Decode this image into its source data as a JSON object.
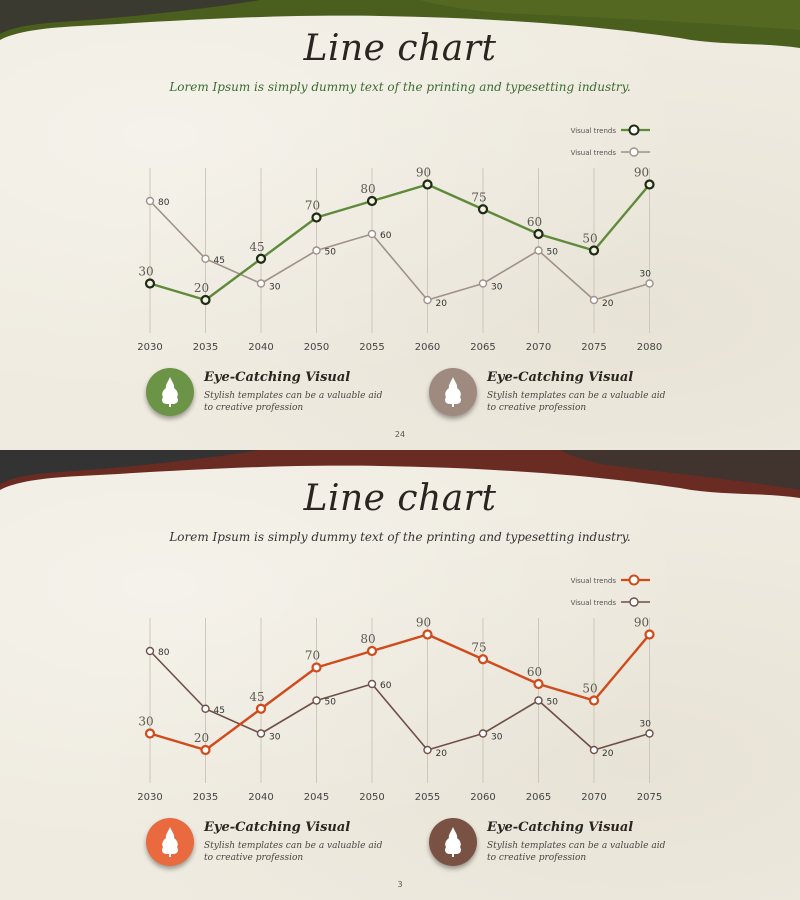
{
  "slides": [
    {
      "title": "Line chart",
      "subtitle": "Lorem Ipsum is simply dummy text of the printing and typesetting industry.",
      "page_number": "24",
      "colors": {
        "primary": "#5e8a3a",
        "secondary": "#a0928a",
        "band": "#4a5e1e",
        "band_dark": "#3a3a30",
        "subtitle": "#3c6b2f",
        "badge1": "#6b9446",
        "badge2": "#9e8a7e"
      },
      "features": [
        {
          "title": "Eye-Catching Visual",
          "desc": "Stylish templates can be a valuable aid to creative profession",
          "icon": "tree-icon"
        },
        {
          "title": "Eye-Catching Visual",
          "desc": "Stylish templates can be a valuable aid to creative profession",
          "icon": "tree-icon"
        }
      ]
    },
    {
      "title": "Line chart",
      "subtitle": "Lorem Ipsum is simply dummy text of the printing and typesetting industry.",
      "page_number": "3",
      "colors": {
        "primary": "#d04a1a",
        "secondary": "#6e5048",
        "band": "#6a2c22",
        "band_dark": "#333",
        "subtitle": "#333333",
        "badge1": "#e86a3e",
        "badge2": "#7a5244"
      },
      "features": [
        {
          "title": "Eye-Catching Visual",
          "desc": "Stylish templates can be a valuable aid to creative profession",
          "icon": "tree-icon"
        },
        {
          "title": "Eye-Catching Visual",
          "desc": "Stylish templates can be a valuable aid to creative profession",
          "icon": "tree-icon"
        }
      ]
    }
  ],
  "chart_data": [
    {
      "type": "line",
      "categories": [
        "2030",
        "2035",
        "2040",
        "2050",
        "2055",
        "2060",
        "2065",
        "2070",
        "2075",
        "2080"
      ],
      "series": [
        {
          "name": "Visual trends",
          "values": [
            30,
            20,
            45,
            70,
            80,
            90,
            75,
            60,
            50,
            90
          ]
        },
        {
          "name": "Visual trends",
          "values": [
            80,
            45,
            30,
            50,
            60,
            20,
            30,
            50,
            20,
            30
          ]
        }
      ],
      "ylim": [
        0,
        100
      ]
    },
    {
      "type": "line",
      "categories": [
        "2030",
        "2035",
        "2040",
        "2045",
        "2050",
        "2055",
        "2060",
        "2065",
        "2070",
        "2075"
      ],
      "series": [
        {
          "name": "Visual trends",
          "values": [
            30,
            20,
            45,
            70,
            80,
            90,
            75,
            60,
            50,
            90
          ]
        },
        {
          "name": "Visual trends",
          "values": [
            80,
            45,
            30,
            50,
            60,
            20,
            30,
            50,
            20,
            30
          ]
        }
      ],
      "ylim": [
        0,
        100
      ]
    }
  ]
}
